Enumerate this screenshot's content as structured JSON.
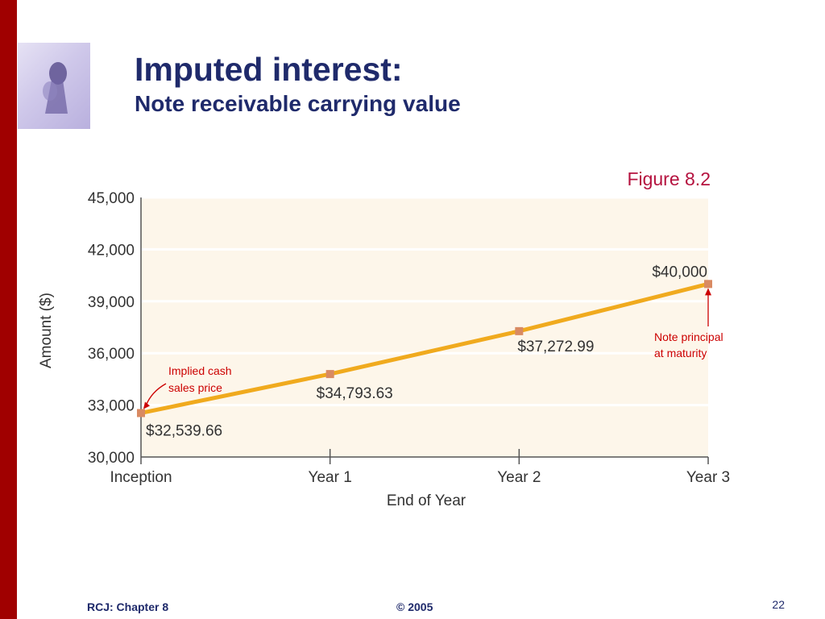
{
  "slide": {
    "title": "Imputed interest:",
    "subtitle": "Note receivable carrying value",
    "figure_label": "Figure 8.2",
    "footer_left": "RCJ: Chapter 8",
    "footer_center": "© 2005",
    "page_number": "22",
    "accent_color": "#a00000",
    "title_color": "#1f2a6b"
  },
  "chart_data": {
    "type": "line",
    "categories": [
      "Inception",
      "Year 1",
      "Year 2",
      "Year 3"
    ],
    "values": [
      32539.66,
      34793.63,
      37272.99,
      40000
    ],
    "value_labels": [
      "$32,539.66",
      "$34,793.63",
      "$37,272.99",
      "$40,000"
    ],
    "xlabel": "End of Year",
    "ylabel": "Amount ($)",
    "ylim": [
      30000,
      45000
    ],
    "yticks": [
      30000,
      33000,
      36000,
      39000,
      42000,
      45000
    ],
    "ytick_labels": [
      "30,000",
      "33,000",
      "36,000",
      "39,000",
      "42,000",
      "45,000"
    ],
    "grid": true,
    "line_color": "#f0aa1e",
    "marker_color": "#d98a62",
    "plot_background": "#fdf6ea",
    "annotations": [
      {
        "text_lines": [
          "Implied cash",
          "sales price"
        ],
        "category": "Inception",
        "color": "#cc0000"
      },
      {
        "text_lines": [
          "Note principal",
          "at maturity"
        ],
        "category": "Year 3",
        "color": "#cc0000"
      }
    ]
  }
}
